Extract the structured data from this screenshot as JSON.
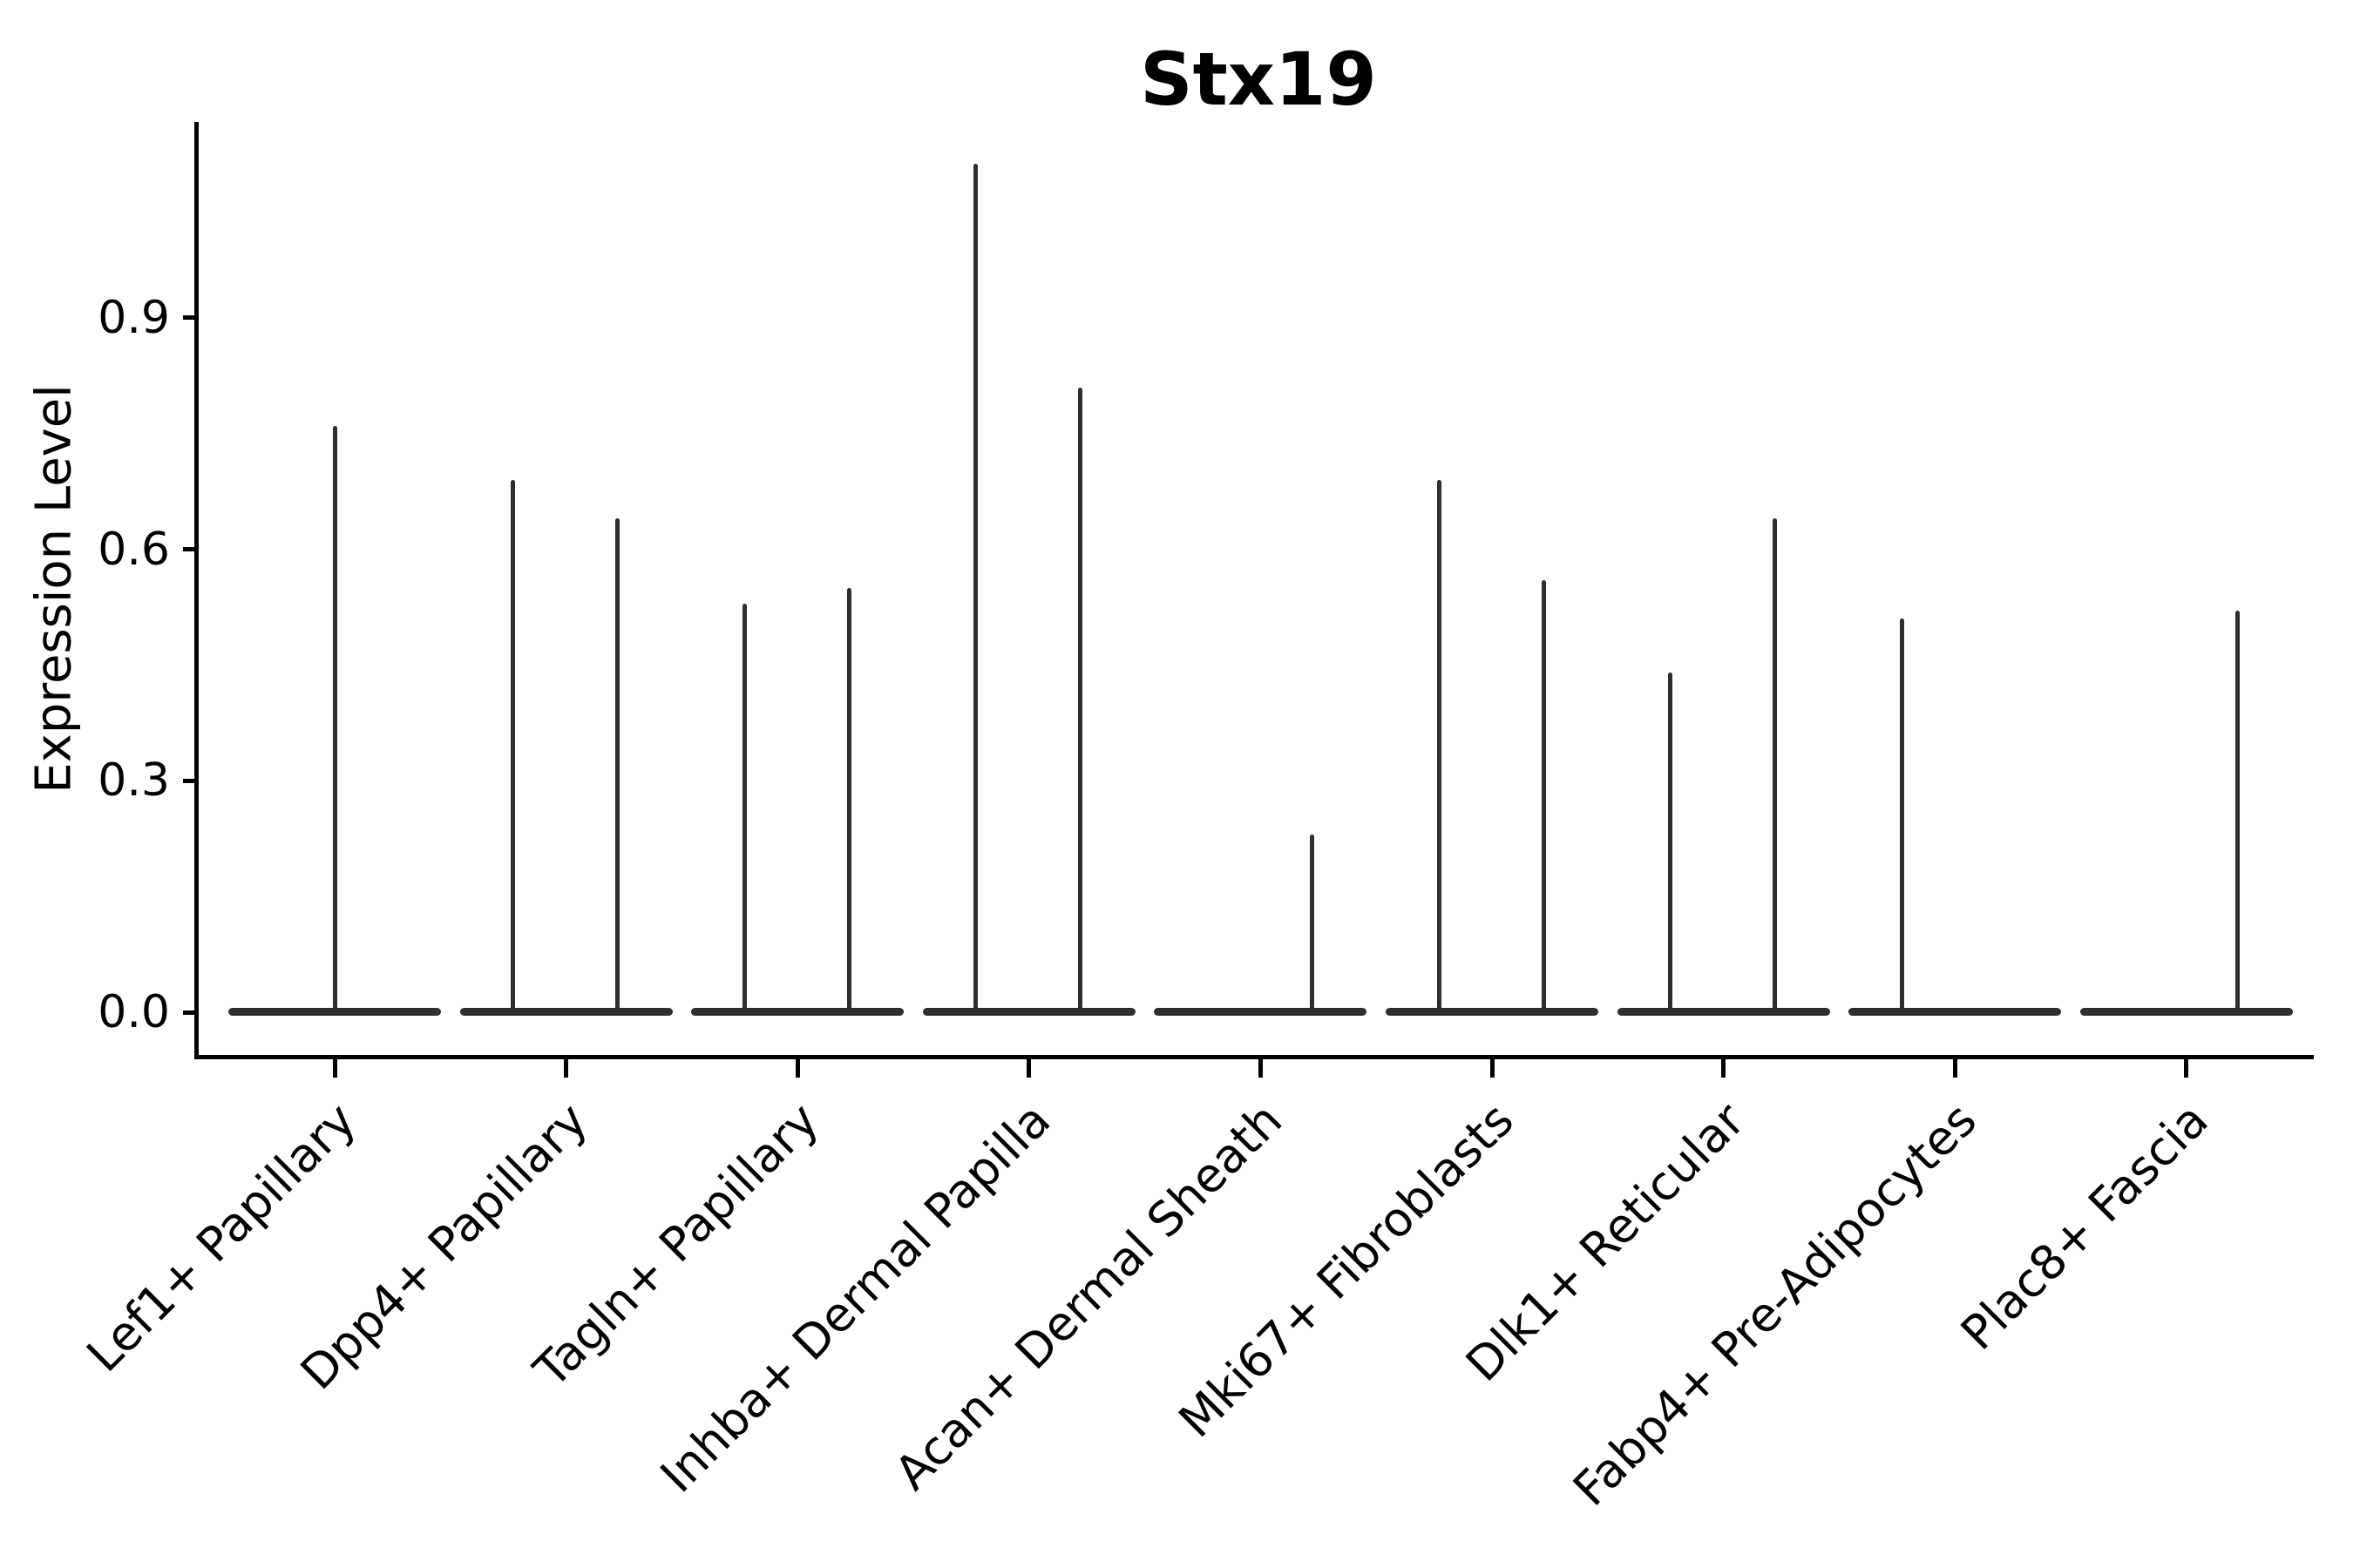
{
  "title": "Stx19",
  "colors": {
    "background": "#ffffff",
    "violin": "#2e2e2e",
    "axis": "#000000",
    "text": "#000000"
  },
  "chart_data": {
    "type": "violin",
    "title": "Stx19",
    "xlabel": "",
    "ylabel": "Expression Level",
    "ylim": [
      0,
      1.15
    ],
    "ytick_values": [
      0.0,
      0.3,
      0.6,
      0.9
    ],
    "ytick_labels": [
      "0.0",
      "0.3",
      "0.6",
      "0.9"
    ],
    "grid": false,
    "legend": "none",
    "spines": [
      "left",
      "bottom"
    ],
    "xlabel_rotation_deg": 45,
    "categories": [
      "Lef1+ Papillary",
      "Dpp4+ Papillary",
      "Tagln+ Papillary",
      "Inhba+ Dermal Papilla",
      "Acan+ Dermal Sheath",
      "Mki67+ Fibroblasts",
      "Dlk1+ Reticular",
      "Fabp4+ Pre-Adipocytes",
      "Plac8+ Fascia"
    ],
    "series": [
      {
        "category": "Lef1+ Papillary",
        "base_value": 0.0,
        "spikes": [
          {
            "position": "center",
            "value": 0.76
          }
        ]
      },
      {
        "category": "Dpp4+ Papillary",
        "base_value": 0.0,
        "spikes": [
          {
            "position": "left",
            "value": 0.69
          },
          {
            "position": "right",
            "value": 0.64
          }
        ]
      },
      {
        "category": "Tagln+ Papillary",
        "base_value": 0.0,
        "spikes": [
          {
            "position": "left",
            "value": 0.53
          },
          {
            "position": "right",
            "value": 0.55
          }
        ]
      },
      {
        "category": "Inhba+ Dermal Papilla",
        "base_value": 0.0,
        "spikes": [
          {
            "position": "left",
            "value": 1.1
          },
          {
            "position": "right",
            "value": 0.81
          }
        ]
      },
      {
        "category": "Acan+ Dermal Sheath",
        "base_value": 0.0,
        "spikes": [
          {
            "position": "right",
            "value": 0.23
          }
        ]
      },
      {
        "category": "Mki67+ Fibroblasts",
        "base_value": 0.0,
        "spikes": [
          {
            "position": "left",
            "value": 0.69
          },
          {
            "position": "right",
            "value": 0.56
          }
        ]
      },
      {
        "category": "Dlk1+ Reticular",
        "base_value": 0.0,
        "spikes": [
          {
            "position": "left",
            "value": 0.44
          },
          {
            "position": "right",
            "value": 0.64
          }
        ]
      },
      {
        "category": "Fabp4+ Pre-Adipocytes",
        "base_value": 0.0,
        "spikes": [
          {
            "position": "left",
            "value": 0.51
          }
        ]
      },
      {
        "category": "Plac8+ Fascia",
        "base_value": 0.0,
        "spikes": [
          {
            "position": "right",
            "value": 0.52
          }
        ]
      }
    ]
  }
}
